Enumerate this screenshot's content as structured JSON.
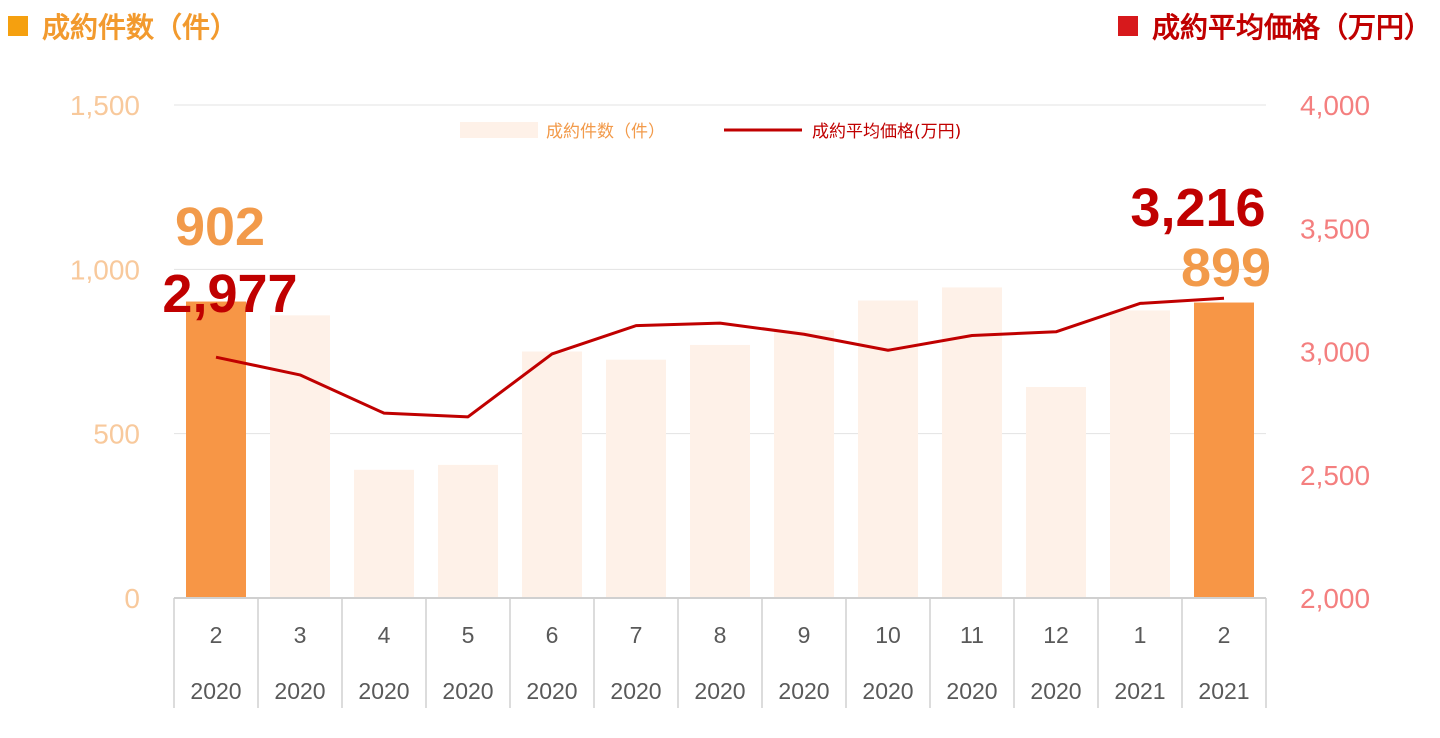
{
  "header": {
    "left_title": "成約件数（件）",
    "right_title": "成約平均価格（万円）"
  },
  "colors": {
    "bar_highlight": "#F79646",
    "bar_muted": "#FEF1E8",
    "line": "#C00000",
    "left_axis_text": "#F8C99C",
    "right_axis_text": "#F47F7F",
    "left_square": "#F5A00F",
    "right_square": "#D7191C"
  },
  "chart_data": {
    "type": "bar",
    "categories": [
      {
        "month": "2",
        "year": "2020"
      },
      {
        "month": "3",
        "year": "2020"
      },
      {
        "month": "4",
        "year": "2020"
      },
      {
        "month": "5",
        "year": "2020"
      },
      {
        "month": "6",
        "year": "2020"
      },
      {
        "month": "7",
        "year": "2020"
      },
      {
        "month": "8",
        "year": "2020"
      },
      {
        "month": "9",
        "year": "2020"
      },
      {
        "month": "10",
        "year": "2020"
      },
      {
        "month": "11",
        "year": "2020"
      },
      {
        "month": "12",
        "year": "2020"
      },
      {
        "month": "1",
        "year": "2021"
      },
      {
        "month": "2",
        "year": "2021"
      }
    ],
    "series": [
      {
        "name": "成約件数（件）",
        "type": "bar",
        "axis": "left",
        "values": [
          902,
          860,
          390,
          405,
          750,
          725,
          770,
          815,
          905,
          945,
          642,
          875,
          899
        ],
        "highlight": [
          true,
          false,
          false,
          false,
          false,
          false,
          false,
          false,
          false,
          false,
          false,
          false,
          true
        ]
      },
      {
        "name": "成約平均価格(万円)",
        "type": "line",
        "axis": "right",
        "values": [
          2977,
          2905,
          2750,
          2735,
          2990,
          3105,
          3115,
          3070,
          3005,
          3065,
          3080,
          3195,
          3216
        ]
      }
    ],
    "y_left": {
      "range": [
        0,
        1500
      ],
      "ticks": [
        "0",
        "500",
        "1,000",
        "1,500"
      ],
      "tick_values": [
        0,
        500,
        1000,
        1500
      ]
    },
    "y_right": {
      "range": [
        2000,
        4000
      ],
      "ticks": [
        "2,000",
        "2,500",
        "3,000",
        "3,500",
        "4,000"
      ],
      "tick_values": [
        2000,
        2500,
        3000,
        3500,
        4000
      ]
    },
    "gridlines": true,
    "legend_position": "top",
    "data_labels": [
      {
        "text": "902",
        "series": 0,
        "index": 0
      },
      {
        "text": "2,977",
        "series": 1,
        "index": 0
      },
      {
        "text": "3,216",
        "series": 1,
        "index": 12
      },
      {
        "text": "899",
        "series": 0,
        "index": 12
      }
    ]
  }
}
